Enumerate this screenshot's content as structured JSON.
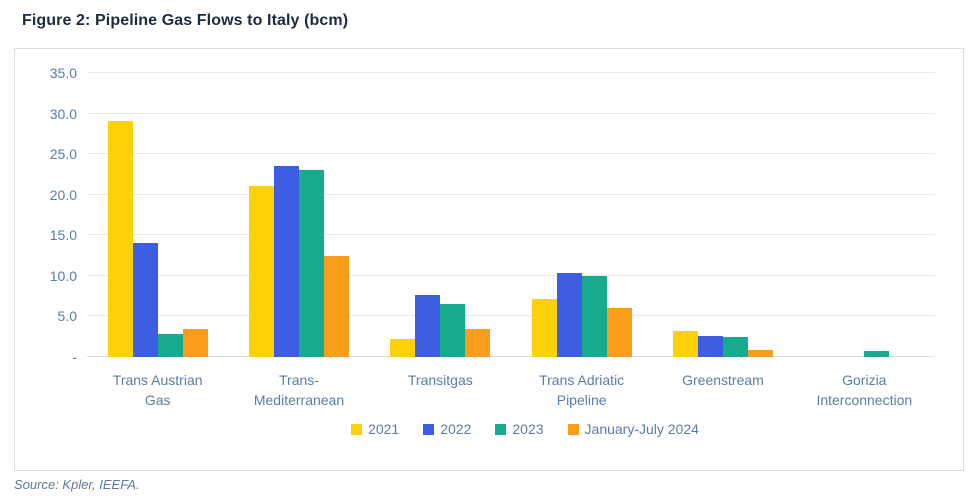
{
  "figure": {
    "title": "Figure 2: Pipeline Gas Flows to Italy (bcm)",
    "source": "Source: Kpler, IEEFA."
  },
  "chart_data": {
    "type": "bar",
    "title": "Figure 2: Pipeline Gas Flows to Italy (bcm)",
    "xlabel": "",
    "ylabel": "",
    "ylim": [
      0,
      35
    ],
    "grid": true,
    "legend_position": "bottom",
    "categories": [
      "Trans Austrian\nGas",
      "Trans-\nMediterranean",
      "Transitgas",
      "Trans Adriatic\nPipeline",
      "Greenstream",
      "Gorizia\nInterconnection"
    ],
    "yticks": [
      {
        "label": "35.0",
        "value": 35
      },
      {
        "label": "30.0",
        "value": 30
      },
      {
        "label": "25.0",
        "value": 25
      },
      {
        "label": "20.0",
        "value": 20
      },
      {
        "label": "15.0",
        "value": 15
      },
      {
        "label": "10.0",
        "value": 10
      },
      {
        "label": "5.0",
        "value": 5
      },
      {
        "label": "-",
        "value": 0
      }
    ],
    "series": [
      {
        "name": "2021",
        "color": "#fcd108",
        "values": [
          29.1,
          21.1,
          2.2,
          7.2,
          3.2,
          0
        ]
      },
      {
        "name": "2022",
        "color": "#3d5de3",
        "values": [
          14.0,
          23.6,
          7.6,
          10.3,
          2.6,
          0
        ]
      },
      {
        "name": "2023",
        "color": "#16ab8d",
        "values": [
          2.8,
          23.1,
          6.5,
          10.0,
          2.5,
          0.8
        ]
      },
      {
        "name": "January-July 2024",
        "color": "#f99d1d",
        "values": [
          3.5,
          12.5,
          3.5,
          6.1,
          0.9,
          0
        ]
      }
    ]
  }
}
